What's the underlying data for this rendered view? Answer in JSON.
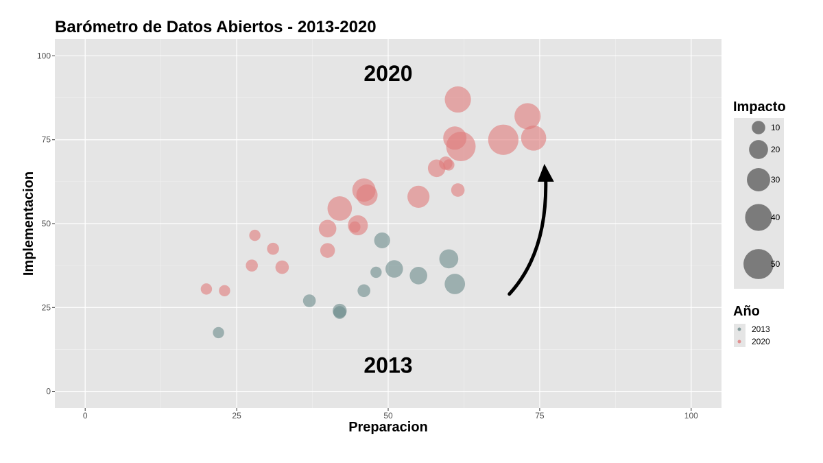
{
  "chart_data": {
    "type": "scatter",
    "title": "Barómetro de Datos Abiertos - 2013-2020",
    "xlabel": "Preparacion",
    "ylabel": "Implementacion",
    "xlim": [
      -5,
      105
    ],
    "ylim": [
      -5,
      105
    ],
    "xticks": [
      0,
      25,
      50,
      75,
      100
    ],
    "yticks": [
      0,
      25,
      50,
      75,
      100
    ],
    "xtick_labels": [
      "0",
      "25",
      "50",
      "75",
      "100"
    ],
    "ytick_labels": [
      "0",
      "25",
      "50",
      "75",
      "100"
    ],
    "grid": true,
    "background": "#e5e5e5",
    "annotations": [
      {
        "text": "2020",
        "x": 50,
        "y": 95
      },
      {
        "text": "2013",
        "x": 50,
        "y": 8
      },
      {
        "type": "arrow",
        "from": [
          70,
          29
        ],
        "to": [
          76,
          67
        ]
      }
    ],
    "size_legend": {
      "title": "Impacto",
      "values": [
        10,
        20,
        30,
        40,
        50
      ]
    },
    "color_legend": {
      "title": "Año",
      "entries": [
        "2013",
        "2020"
      ]
    },
    "series": [
      {
        "name": "2013",
        "color": "#6b8a8a",
        "points": [
          {
            "x": 22,
            "y": 17.5,
            "size": 7
          },
          {
            "x": 37,
            "y": 27,
            "size": 9
          },
          {
            "x": 42,
            "y": 24,
            "size": 11
          },
          {
            "x": 42,
            "y": 23.5,
            "size": 9
          },
          {
            "x": 46,
            "y": 30,
            "size": 9
          },
          {
            "x": 48,
            "y": 35.5,
            "size": 7
          },
          {
            "x": 49,
            "y": 45,
            "size": 14
          },
          {
            "x": 51,
            "y": 36.5,
            "size": 17
          },
          {
            "x": 55,
            "y": 34.5,
            "size": 17
          },
          {
            "x": 60,
            "y": 39.5,
            "size": 20
          },
          {
            "x": 61,
            "y": 32,
            "size": 23
          }
        ]
      },
      {
        "name": "2020",
        "color": "#e07a7a",
        "points": [
          {
            "x": 20,
            "y": 30.5,
            "size": 7
          },
          {
            "x": 23,
            "y": 30,
            "size": 7
          },
          {
            "x": 27.5,
            "y": 37.5,
            "size": 8
          },
          {
            "x": 28,
            "y": 46.5,
            "size": 7
          },
          {
            "x": 31,
            "y": 42.5,
            "size": 8
          },
          {
            "x": 32.5,
            "y": 37,
            "size": 10
          },
          {
            "x": 40,
            "y": 42,
            "size": 12
          },
          {
            "x": 40,
            "y": 48.5,
            "size": 17
          },
          {
            "x": 42,
            "y": 54.5,
            "size": 33
          },
          {
            "x": 44.5,
            "y": 49,
            "size": 7
          },
          {
            "x": 45,
            "y": 49.5,
            "size": 22
          },
          {
            "x": 46,
            "y": 60,
            "size": 30
          },
          {
            "x": 46.5,
            "y": 58.5,
            "size": 25
          },
          {
            "x": 55,
            "y": 58,
            "size": 27
          },
          {
            "x": 58,
            "y": 66.5,
            "size": 17
          },
          {
            "x": 59.5,
            "y": 68,
            "size": 10
          },
          {
            "x": 60,
            "y": 67.5,
            "size": 7
          },
          {
            "x": 61.5,
            "y": 60,
            "size": 10
          },
          {
            "x": 61,
            "y": 75.5,
            "size": 30
          },
          {
            "x": 61.5,
            "y": 87,
            "size": 38
          },
          {
            "x": 62,
            "y": 73,
            "size": 48
          },
          {
            "x": 69,
            "y": 75,
            "size": 51
          },
          {
            "x": 73,
            "y": 82,
            "size": 38
          },
          {
            "x": 74,
            "y": 75.5,
            "size": 35
          }
        ]
      }
    ]
  }
}
